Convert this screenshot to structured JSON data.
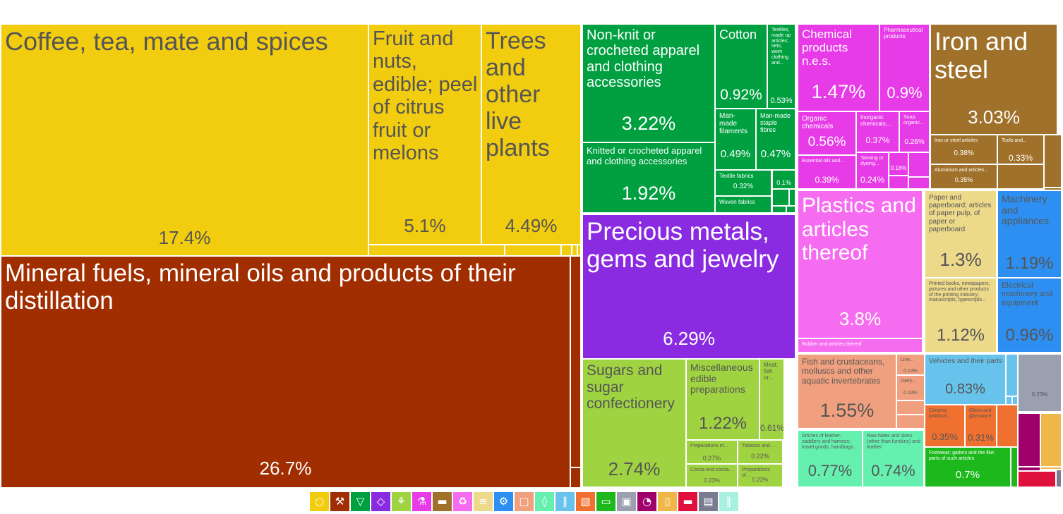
{
  "chart_data": {
    "type": "treemap",
    "unit": "%",
    "groups": [
      {
        "name": "Vegetable products",
        "color": "#F2CC0F",
        "icon": "fruit-icon"
      },
      {
        "name": "Mineral products",
        "color": "#A02E00",
        "icon": "pickaxe-icon"
      },
      {
        "name": "Textiles",
        "color": "#00A040",
        "icon": "shirt-icon"
      },
      {
        "name": "Precious metals",
        "color": "#8A2BE2",
        "icon": "gem-icon"
      },
      {
        "name": "Foodstuffs",
        "color": "#A0D341",
        "icon": "wheat-icon"
      },
      {
        "name": "Chemical products",
        "color": "#E83BE8",
        "icon": "flask-icon"
      },
      {
        "name": "Metals",
        "color": "#A0712A",
        "icon": "anvil-icon"
      },
      {
        "name": "Plastics and rubbers",
        "color": "#F66CF0",
        "icon": "recycle-icon"
      },
      {
        "name": "Paper goods",
        "color": "#EDD98A",
        "icon": "paper-icon"
      },
      {
        "name": "Machines",
        "color": "#2E8FF2",
        "icon": "gear-icon"
      },
      {
        "name": "Animal products",
        "color": "#F0A07E",
        "icon": "cow-icon"
      },
      {
        "name": "Animal hides",
        "color": "#66F0B0",
        "icon": "hide-icon"
      },
      {
        "name": "Transportation",
        "color": "#68C3EC",
        "icon": "road-icon"
      },
      {
        "name": "Stone and glass",
        "color": "#F07030",
        "icon": "brick-icon"
      },
      {
        "name": "Footwear and headwear",
        "color": "#1CB81C",
        "icon": "shoe-icon"
      },
      {
        "name": "Miscellaneous",
        "color": "#9AA0B0",
        "icon": "box-icon"
      },
      {
        "name": "Instruments",
        "color": "#A0006A",
        "icon": "gauge-icon"
      },
      {
        "name": "Animal and vegetable bi-products",
        "color": "#EEB748",
        "icon": "jar-icon"
      },
      {
        "name": "Arms",
        "color": "#E0103C",
        "icon": "gun-icon"
      },
      {
        "name": "Arts and antiques",
        "color": "#7A7A90",
        "icon": "easel-icon"
      },
      {
        "name": "Weapons and others",
        "color": "#A8F0E0",
        "icon": "vase-icon"
      }
    ],
    "items": [
      {
        "label": "Coffee, tea, mate and spices",
        "value": "17.4%",
        "group": 0
      },
      {
        "label": "Fruit and nuts, edible; peel of citrus fruit or melons",
        "value": "5.1%",
        "group": 0
      },
      {
        "label": "Trees and other live plants",
        "value": "4.49%",
        "group": 0
      },
      {
        "label": "Mineral fuels, mineral oils and products of their distillation",
        "value": "26.7%",
        "group": 1
      },
      {
        "label": "Non-knit or crocheted apparel and clothing accessories",
        "value": "3.22%",
        "group": 2
      },
      {
        "label": "Cotton",
        "value": "0.92%",
        "group": 2
      },
      {
        "label": "Textiles, made up articles; sets; worn clothing and...",
        "value": "0.53%",
        "group": 2
      },
      {
        "label": "Man-made filaments",
        "value": "0.49%",
        "group": 2
      },
      {
        "label": "Man-made staple fibres",
        "value": "0.47%",
        "group": 2
      },
      {
        "label": "Knitted or crocheted apparel and clothing accessories",
        "value": "1.92%",
        "group": 2
      },
      {
        "label": "Textile fabrics",
        "value": "0.32%",
        "group": 2
      },
      {
        "label": "",
        "value": "0.1%",
        "group": 2
      },
      {
        "label": "Woven fabrics",
        "value": "",
        "group": 2
      },
      {
        "label": "Precious metals, gems and jewelry",
        "value": "6.29%",
        "group": 3
      },
      {
        "label": "Sugars and sugar confectionery",
        "value": "2.74%",
        "group": 4
      },
      {
        "label": "Miscellaneous edible preparations",
        "value": "1.22%",
        "group": 4
      },
      {
        "label": "Meat, fish or...",
        "value": "0.61%",
        "group": 4
      },
      {
        "label": "Preparations of...",
        "value": "0.27%",
        "group": 4
      },
      {
        "label": "Tobacco and...",
        "value": "0.22%",
        "group": 4
      },
      {
        "label": "Cocoa and cocoa...",
        "value": "0.23%",
        "group": 4
      },
      {
        "label": "Preparations of...",
        "value": "0.22%",
        "group": 4
      },
      {
        "label": "Chemical products n.e.s.",
        "value": "1.47%",
        "group": 5
      },
      {
        "label": "Pharmaceutical products",
        "value": "0.9%",
        "group": 5
      },
      {
        "label": "Organic chemicals",
        "value": "0.56%",
        "group": 5
      },
      {
        "label": "Inorganic chemicals;...",
        "value": "0.37%",
        "group": 5
      },
      {
        "label": "Soap, organic...",
        "value": "0.26%",
        "group": 5
      },
      {
        "label": "Essential oils and...",
        "value": "0.39%",
        "group": 5
      },
      {
        "label": "Tanning or dyeing...",
        "value": "0.24%",
        "group": 5
      },
      {
        "label": "",
        "value": "0.18%",
        "group": 5
      },
      {
        "label": "Iron and steel",
        "value": "3.03%",
        "group": 6
      },
      {
        "label": "Iron or steel articles",
        "value": "0.38%",
        "group": 6
      },
      {
        "label": "Tools and...",
        "value": "0.33%",
        "group": 6
      },
      {
        "label": "Aluminium and articles...",
        "value": "0.35%",
        "group": 6
      },
      {
        "label": "Plastics and articles thereof",
        "value": "3.8%",
        "group": 7
      },
      {
        "label": "Rubber and articles thereof",
        "value": "",
        "group": 7
      },
      {
        "label": "Paper and paperboard; articles of paper pulp, of paper or paperboard",
        "value": "1.3%",
        "group": 8
      },
      {
        "label": "Printed books, newspapers, pictures and other products of the printing industry; manuscripts, typescripts...",
        "value": "1.12%",
        "group": 8
      },
      {
        "label": "Machinery and appliances",
        "value": "1.19%",
        "group": 9
      },
      {
        "label": "Electrical machinery and equipment",
        "value": "0.96%",
        "group": 9
      },
      {
        "label": "Fish and crustaceans, molluscs and other aquatic invertebrates",
        "value": "1.55%",
        "group": 10
      },
      {
        "label": "Live...",
        "value": "0.14%",
        "group": 10
      },
      {
        "label": "Dairy...",
        "value": "0.13%",
        "group": 10
      },
      {
        "label": "Articles of leather; saddlery and harness; travel goods, handbags...",
        "value": "0.77%",
        "group": 11
      },
      {
        "label": "Raw hides and skins (other than furskins) and leather",
        "value": "0.74%",
        "group": 11
      },
      {
        "label": "Vehicles and their parts",
        "value": "0.83%",
        "group": 12
      },
      {
        "label": "Ceramic products",
        "value": "0.35%",
        "group": 13
      },
      {
        "label": "Glass and glassware",
        "value": "0.31%",
        "group": 13
      },
      {
        "label": "Footwear; gaiters and the like; parts of such articles",
        "value": "0.7%",
        "group": 14
      },
      {
        "label": "",
        "value": "0.23%",
        "group": 15
      }
    ]
  }
}
